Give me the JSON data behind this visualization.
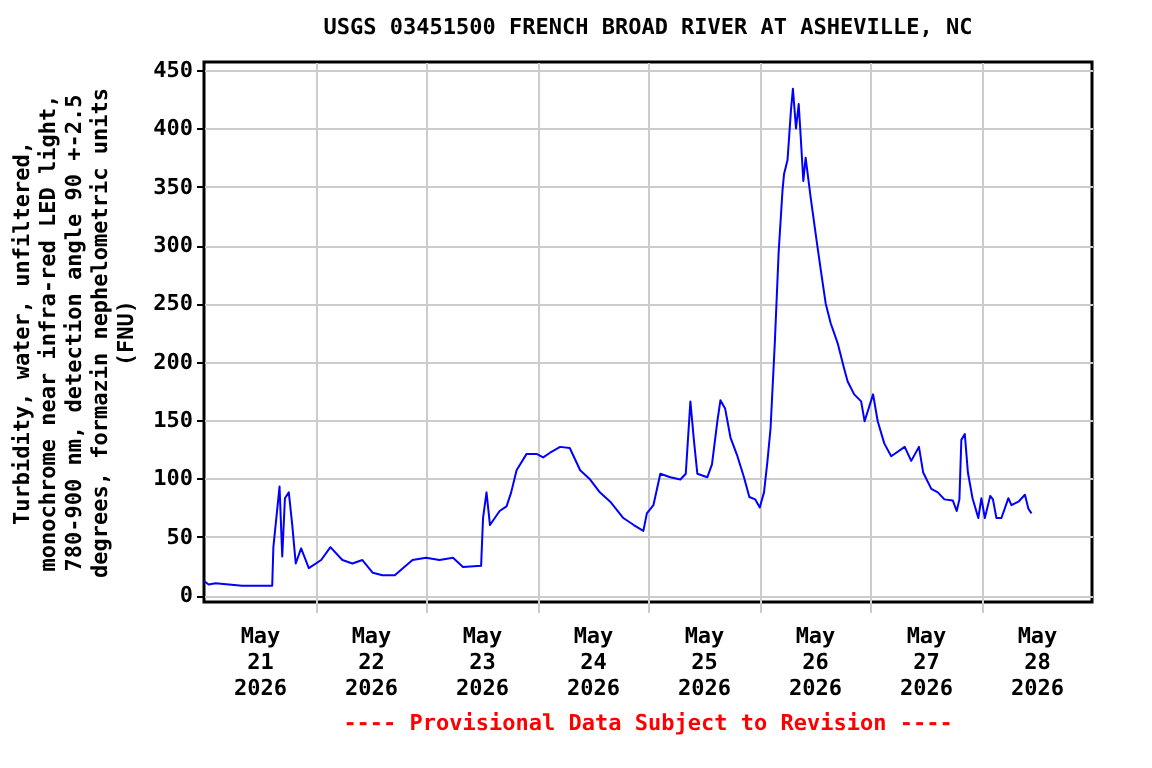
{
  "chart_data": {
    "type": "line",
    "title": "USGS 03451500 FRENCH BROAD RIVER AT ASHEVILLE, NC",
    "ylabel": "Turbidity, water, unfiltered, monochrome near infra-red LED light, 780-900 nm, detection angle 90 +-2.5 degrees, formazin nephelometric units (FNU)",
    "annotations": [
      "---- Provisional Data Subject to Revision ----"
    ],
    "xlim": [
      "2026-05-21T00:00",
      "2026-05-29T00:00"
    ],
    "xticks": [
      {
        "value": "2026-05-21T12:00",
        "label": "May\n21\n2026"
      },
      {
        "value": "2026-05-22T00:00",
        "label": null
      },
      {
        "value": "2026-05-22T12:00",
        "label": "May\n22\n2026"
      },
      {
        "value": "2026-05-23T00:00",
        "label": null
      },
      {
        "value": "2026-05-23T12:00",
        "label": "May\n23\n2026"
      },
      {
        "value": "2026-05-24T00:00",
        "label": null
      },
      {
        "value": "2026-05-24T12:00",
        "label": "May\n24\n2026"
      },
      {
        "value": "2026-05-25T00:00",
        "label": null
      },
      {
        "value": "2026-05-25T12:00",
        "label": "May\n25\n2026"
      },
      {
        "value": "2026-05-26T00:00",
        "label": null
      },
      {
        "value": "2026-05-26T12:00",
        "label": "May\n26\n2026"
      },
      {
        "value": "2026-05-27T00:00",
        "label": null
      },
      {
        "value": "2026-05-27T12:00",
        "label": "May\n27\n2026"
      },
      {
        "value": "2026-05-28T00:00",
        "label": null
      },
      {
        "value": "2026-05-28T12:00",
        "label": "May\n28\n2026"
      }
    ],
    "ylim": [
      -6,
      457
    ],
    "yticks": [
      0,
      50,
      100,
      150,
      200,
      250,
      300,
      350,
      400,
      450
    ],
    "grid": true,
    "marker": "none",
    "line_style": "solid",
    "x": [
      "2026-05-21T00:00",
      "2026-05-21T01:00",
      "2026-05-21T02:30",
      "2026-05-21T08:15",
      "2026-05-21T14:45",
      "2026-05-21T15:00",
      "2026-05-21T16:20",
      "2026-05-21T16:55",
      "2026-05-21T17:30",
      "2026-05-21T18:20",
      "2026-05-21T19:05",
      "2026-05-21T19:50",
      "2026-05-21T21:00",
      "2026-05-21T22:40",
      "2026-05-22T01:20",
      "2026-05-22T03:20",
      "2026-05-22T05:55",
      "2026-05-22T08:05",
      "2026-05-22T10:15",
      "2026-05-22T12:30",
      "2026-05-22T14:35",
      "2026-05-22T17:15",
      "2026-05-22T19:00",
      "2026-05-22T21:05",
      "2026-05-23T00:00",
      "2026-05-23T02:55",
      "2026-05-23T05:50",
      "2026-05-23T08:00",
      "2026-05-23T11:55",
      "2026-05-23T12:20",
      "2026-05-23T13:05",
      "2026-05-23T13:50",
      "2026-05-23T15:55",
      "2026-05-23T17:25",
      "2026-05-23T18:25",
      "2026-05-23T19:35",
      "2026-05-23T21:45",
      "2026-05-23T23:55",
      "2026-05-24T01:20",
      "2026-05-24T02:50",
      "2026-05-24T05:00",
      "2026-05-24T07:05",
      "2026-05-24T09:20",
      "2026-05-24T11:30",
      "2026-05-24T13:35",
      "2026-05-24T15:50",
      "2026-05-24T18:40",
      "2026-05-24T20:55",
      "2026-05-24T23:00",
      "2026-05-24T23:45",
      "2026-05-25T01:10",
      "2026-05-25T02:40",
      "2026-05-25T04:50",
      "2026-05-25T07:00",
      "2026-05-25T08:10",
      "2026-05-25T09:10",
      "2026-05-25T09:55",
      "2026-05-25T10:40",
      "2026-05-25T12:50",
      "2026-05-25T13:50",
      "2026-05-25T15:00",
      "2026-05-25T15:40",
      "2026-05-25T16:40",
      "2026-05-25T17:50",
      "2026-05-25T19:20",
      "2026-05-25T20:45",
      "2026-05-25T21:55",
      "2026-05-25T23:10",
      "2026-05-26T00:10",
      "2026-05-26T01:05",
      "2026-05-26T01:50",
      "2026-05-26T02:30",
      "2026-05-26T03:25",
      "2026-05-26T04:15",
      "2026-05-26T05:05",
      "2026-05-26T05:25",
      "2026-05-26T06:10",
      "2026-05-26T06:55",
      "2026-05-26T07:20",
      "2026-05-26T08:00",
      "2026-05-26T08:35",
      "2026-05-26T09:00",
      "2026-05-26T09:35",
      "2026-05-26T10:05",
      "2026-05-26T11:10",
      "2026-05-26T12:25",
      "2026-05-26T13:25",
      "2026-05-26T14:25",
      "2026-05-26T15:30",
      "2026-05-26T17:00",
      "2026-05-26T18:25",
      "2026-05-26T19:10",
      "2026-05-26T20:35",
      "2026-05-26T22:05",
      "2026-05-26T22:50",
      "2026-05-27T00:40",
      "2026-05-27T01:40",
      "2026-05-27T03:05",
      "2026-05-27T04:35",
      "2026-05-27T07:30",
      "2026-05-27T08:55",
      "2026-05-27T10:35",
      "2026-05-27T11:30",
      "2026-05-27T13:15",
      "2026-05-27T14:40",
      "2026-05-27T16:05",
      "2026-05-27T17:55",
      "2026-05-27T18:45",
      "2026-05-27T19:20",
      "2026-05-27T19:45",
      "2026-05-27T20:30",
      "2026-05-27T21:10",
      "2026-05-27T22:10",
      "2026-05-27T23:25",
      "2026-05-28T00:05",
      "2026-05-28T00:50",
      "2026-05-28T02:00",
      "2026-05-28T02:35",
      "2026-05-28T03:20",
      "2026-05-28T04:25",
      "2026-05-28T05:55",
      "2026-05-28T06:35",
      "2026-05-28T08:05",
      "2026-05-28T09:30",
      "2026-05-28T10:15",
      "2026-05-28T10:55"
    ],
    "series": [
      {
        "color": "#0000ff",
        "values": [
          12,
          9,
          10,
          8,
          8,
          41,
          93,
          33,
          83,
          88,
          60,
          27,
          40,
          23,
          30,
          41,
          30,
          27,
          30,
          19,
          17,
          17,
          23,
          30,
          32,
          30,
          32,
          24,
          25,
          66,
          88,
          60,
          72,
          76,
          88,
          107,
          121,
          121,
          118,
          122,
          127,
          126,
          107,
          99,
          88,
          80,
          66,
          60,
          55,
          70,
          77,
          104,
          101,
          99,
          104,
          166,
          133,
          104,
          101,
          112,
          149,
          167,
          160,
          135,
          119,
          101,
          84,
          82,
          75,
          88,
          115,
          143,
          216,
          294,
          347,
          361,
          373,
          416,
          434,
          400,
          421,
          394,
          355,
          375,
          341,
          305,
          277,
          250,
          233,
          216,
          194,
          183,
          172,
          166,
          149,
          172,
          149,
          130,
          119,
          127,
          115,
          127,
          105,
          91,
          88,
          82,
          81,
          72,
          82,
          133,
          138,
          105,
          83,
          66,
          83,
          66,
          85,
          82,
          66,
          66,
          83,
          77,
          80,
          86,
          74,
          70
        ]
      }
    ]
  }
}
